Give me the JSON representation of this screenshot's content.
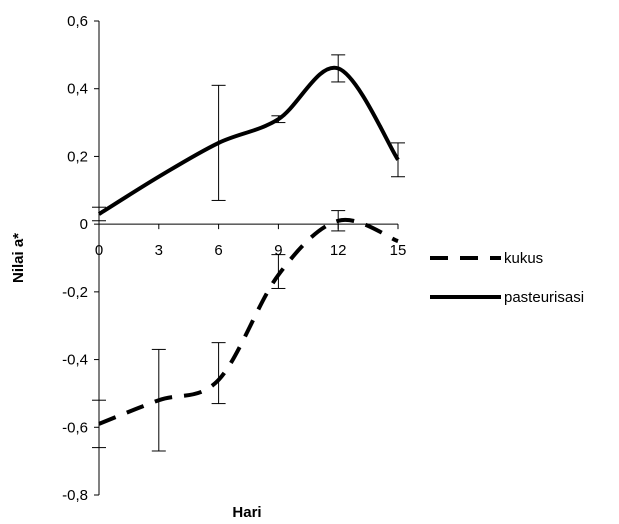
{
  "chart_data": {
    "type": "line",
    "title": "",
    "xlabel": "Hari",
    "ylabel": "Nilai a*",
    "x": [
      0,
      3,
      6,
      9,
      12,
      15
    ],
    "x_tick_labels": [
      "0",
      "3",
      "6",
      "9",
      "12",
      "15"
    ],
    "xlim": [
      0,
      15
    ],
    "ylim": [
      -0.8,
      0.6
    ],
    "y_ticks": [
      -0.8,
      -0.6,
      -0.4,
      -0.2,
      0,
      0.2,
      0.4,
      0.6
    ],
    "y_tick_labels": [
      "-0,8",
      "-0,6",
      "-0,4",
      "-0,2",
      "0",
      "0,2",
      "0,4",
      "0,6"
    ],
    "grid": false,
    "legend_position": "right",
    "series": [
      {
        "name": "kukus",
        "style": "dashed",
        "color": "#000000",
        "values": [
          -0.59,
          -0.52,
          -0.46,
          -0.15,
          0.01,
          -0.05
        ],
        "error_low": [
          -0.66,
          -0.67,
          -0.53,
          -0.19,
          -0.02,
          null
        ],
        "error_high": [
          -0.52,
          -0.37,
          -0.35,
          -0.09,
          0.04,
          null
        ]
      },
      {
        "name": "pasteurisasi",
        "style": "solid",
        "color": "#000000",
        "values": [
          0.03,
          0.14,
          0.24,
          0.31,
          0.46,
          0.19
        ],
        "error_low": [
          0.01,
          null,
          0.07,
          0.3,
          0.42,
          0.14
        ],
        "error_high": [
          0.05,
          null,
          0.41,
          0.32,
          0.5,
          0.24
        ]
      }
    ]
  }
}
